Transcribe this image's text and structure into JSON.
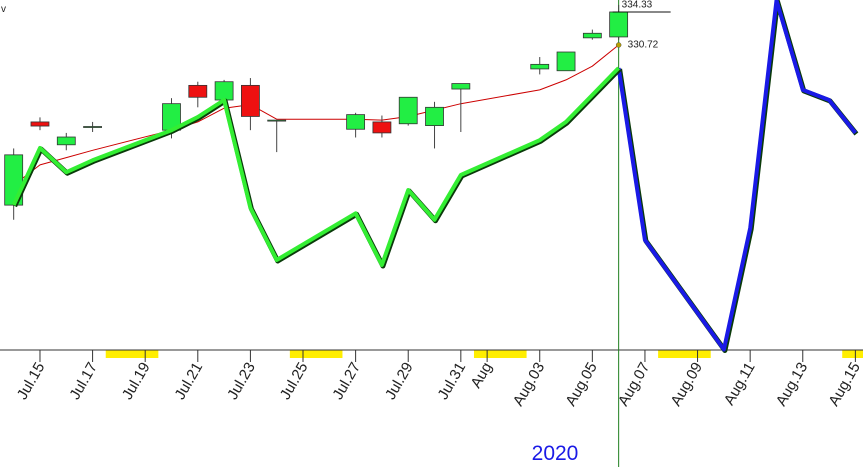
{
  "chart_data": {
    "type": "candlestick",
    "corner_mark": "v",
    "x_label": "2020",
    "xlim": [
      13.48,
      46.29
    ],
    "ylim": [
      297.35,
      335.64
    ],
    "xticks": [
      {
        "value": 15,
        "label": "Jul.15"
      },
      {
        "value": 17,
        "label": "Jul.17"
      },
      {
        "value": 19,
        "label": "Jul.19"
      },
      {
        "value": 21,
        "label": "Jul.21"
      },
      {
        "value": 23,
        "label": "Jul.23"
      },
      {
        "value": 25,
        "label": "Jul.25"
      },
      {
        "value": 27,
        "label": "Jul.27"
      },
      {
        "value": 29,
        "label": "Jul.29"
      },
      {
        "value": 31,
        "label": "Jul.31"
      },
      {
        "value": 32,
        "label": "Aug"
      },
      {
        "value": 34,
        "label": "Aug.03"
      },
      {
        "value": 36,
        "label": "Aug.05"
      },
      {
        "value": 38,
        "label": "Aug.07"
      },
      {
        "value": 40,
        "label": "Aug.09"
      },
      {
        "value": 42,
        "label": "Aug.11"
      },
      {
        "value": 44,
        "label": "Aug.13"
      },
      {
        "value": 46,
        "label": "Aug.15"
      }
    ],
    "weekend_bands": [
      [
        17.5,
        19.5
      ],
      [
        24.5,
        26.5
      ],
      [
        31.5,
        33.5
      ],
      [
        38.5,
        40.5
      ],
      [
        45.5,
        47.5
      ]
    ],
    "weekend_color": "#ffee00",
    "cursor_x": 37,
    "cursor_color": "#208020",
    "up_color": "#22ee44",
    "down_color": "#ee1111",
    "candles": {
      "x": [
        14,
        15,
        16,
        17,
        20,
        21,
        22,
        23,
        24,
        27,
        28,
        29,
        30,
        31,
        34,
        35,
        36,
        37
      ],
      "open": [
        313.2,
        322.3,
        319.8,
        321.7,
        321.4,
        326.3,
        324.7,
        326.3,
        322.5,
        321.5,
        322.3,
        322.1,
        321.9,
        325.9,
        328.1,
        327.9,
        331.5,
        331.6
      ],
      "high": [
        319.4,
        322.8,
        321.1,
        322.3,
        324.9,
        326.7,
        326.9,
        327.1,
        322.5,
        323.3,
        323.0,
        325.0,
        324.5,
        326.5,
        329.4,
        329.95,
        332.4,
        335.1
      ],
      "low": [
        311.6,
        321.4,
        319.2,
        321.2,
        320.5,
        323.9,
        324.3,
        321.4,
        319.0,
        320.6,
        320.6,
        321.9,
        319.4,
        321.2,
        327.5,
        327.9,
        331.3,
        331.3
      ],
      "close": [
        318.7,
        321.85,
        320.65,
        321.8,
        324.3,
        325.0,
        326.7,
        322.9,
        322.5,
        323.1,
        321.1,
        325.0,
        323.9,
        326.5,
        328.6,
        329.95,
        332.0,
        334.33
      ]
    },
    "lines": [
      {
        "color": "#cc0000",
        "width": 1,
        "x": [
          14,
          15,
          16,
          17,
          20,
          21,
          22,
          23,
          24,
          27,
          28,
          29,
          30,
          31,
          34,
          35,
          36,
          37
        ],
        "values": [
          315.4,
          317.6,
          318.4,
          319.2,
          321.4,
          322.3,
          323.8,
          324.2,
          322.6,
          322.6,
          322.5,
          322.9,
          323.6,
          324.3,
          325.8,
          326.9,
          328.4,
          330.72
        ]
      },
      {
        "color": "#33ee33",
        "width": 4,
        "x": [
          14,
          15,
          16,
          17,
          20,
          21,
          22,
          23,
          24,
          27,
          28,
          29,
          30,
          31,
          34,
          35,
          36,
          37
        ],
        "values": [
          313.2,
          319.45,
          316.8,
          318.1,
          321.4,
          322.84,
          324.7,
          312.9,
          307.2,
          312.3,
          306.65,
          314.85,
          311.6,
          316.5,
          320.3,
          322.3,
          325.25,
          328.2
        ]
      },
      {
        "color": "#1a1ae6",
        "width": 4,
        "x": [
          37,
          38,
          41,
          42,
          43,
          44,
          45,
          46
        ],
        "values": [
          328.2,
          309.4,
          297.4,
          310.7,
          335.6,
          325.8,
          324.7,
          321.1
        ]
      }
    ],
    "annotations": [
      334.33,
      330.72
    ]
  }
}
